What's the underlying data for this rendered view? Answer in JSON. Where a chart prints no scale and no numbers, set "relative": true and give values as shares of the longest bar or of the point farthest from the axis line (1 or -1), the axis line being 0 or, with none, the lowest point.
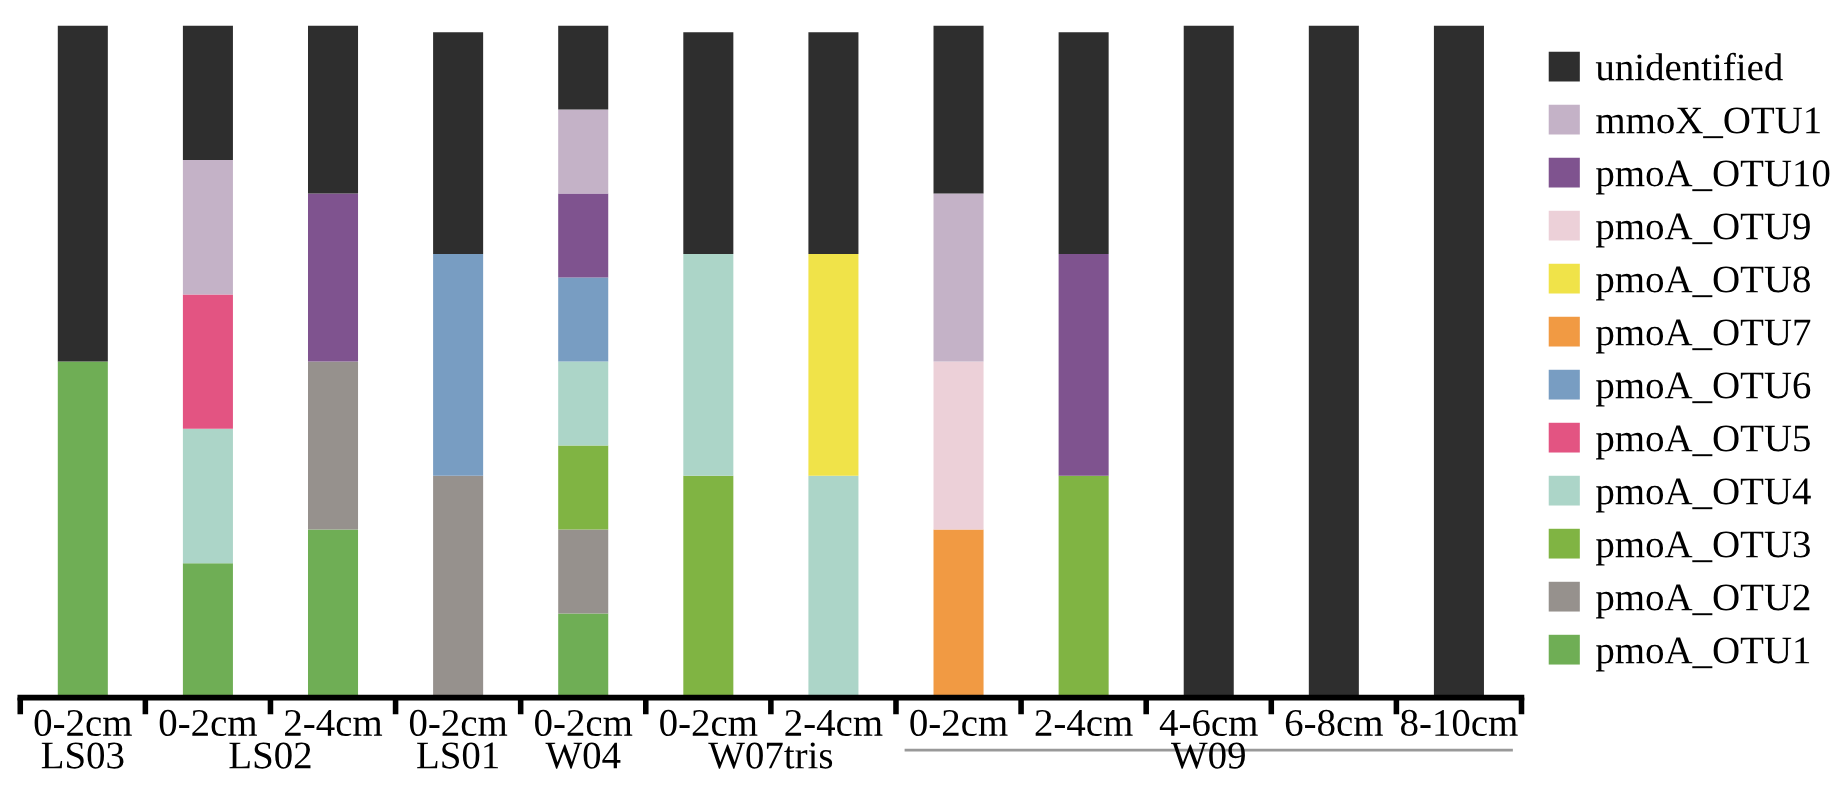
{
  "chart_data": {
    "type": "bar",
    "stacked": true,
    "relative": true,
    "legend": "right",
    "grid": false,
    "categories": [
      "0-2cm",
      "0-2cm",
      "2-4cm",
      "0-2cm",
      "0-2cm",
      "0-2cm",
      "2-4cm",
      "0-2cm",
      "2-4cm",
      "4-6cm",
      "6-8cm",
      "8-10cm"
    ],
    "annotations": [
      "LS03",
      "LS02",
      "LS01",
      "W04",
      "W07tris",
      "W09"
    ],
    "series": [
      {
        "name": "pmoA_OTU1",
        "color": "#6fae55",
        "values": [
          0.5,
          0.2,
          0.25,
          0,
          0.125,
          0,
          0,
          0,
          0,
          0,
          0,
          0
        ]
      },
      {
        "name": "pmoA_OTU2",
        "color": "#96918d",
        "values": [
          0,
          0,
          0.25,
          0.33,
          0.125,
          0,
          0,
          0,
          0,
          0,
          0,
          0
        ]
      },
      {
        "name": "pmoA_OTU3",
        "color": "#80b443",
        "values": [
          0,
          0,
          0,
          0,
          0.125,
          0.33,
          0,
          0,
          0.33,
          0,
          0,
          0
        ]
      },
      {
        "name": "pmoA_OTU4",
        "color": "#acd5c8",
        "values": [
          0,
          0.2,
          0,
          0,
          0.125,
          0.33,
          0.33,
          0,
          0,
          0,
          0,
          0
        ]
      },
      {
        "name": "pmoA_OTU5",
        "color": "#e35482",
        "values": [
          0,
          0.2,
          0,
          0,
          0,
          0,
          0,
          0,
          0,
          0,
          0,
          0
        ]
      },
      {
        "name": "pmoA_OTU6",
        "color": "#789dc2",
        "values": [
          0,
          0,
          0,
          0.33,
          0.125,
          0,
          0,
          0,
          0,
          0,
          0,
          0
        ]
      },
      {
        "name": "pmoA_OTU7",
        "color": "#f19a43",
        "values": [
          0,
          0,
          0,
          0,
          0,
          0,
          0,
          0.25,
          0,
          0,
          0,
          0
        ]
      },
      {
        "name": "pmoA_OTU8",
        "color": "#f0e349",
        "values": [
          0,
          0,
          0,
          0,
          0,
          0,
          0.33,
          0,
          0,
          0,
          0,
          0
        ]
      },
      {
        "name": "pmoA_OTU9",
        "color": "#ecd0d8",
        "values": [
          0,
          0,
          0,
          0,
          0,
          0,
          0,
          0.25,
          0,
          0,
          0,
          0
        ]
      },
      {
        "name": "pmoA_OTU10",
        "color": "#7f538f",
        "values": [
          0,
          0,
          0.25,
          0,
          0.125,
          0,
          0,
          0,
          0.33,
          0,
          0,
          0
        ]
      },
      {
        "name": "mmoX_OTU1",
        "color": "#c4b2c7",
        "values": [
          0,
          0.2,
          0,
          0,
          0.125,
          0,
          0,
          0.25,
          0,
          0,
          0,
          0
        ]
      },
      {
        "name": "unidentified",
        "color": "#2e2e2e",
        "values": [
          0.5,
          0.2,
          0.25,
          0.33,
          0.125,
          0.33,
          0.33,
          0.25,
          0.33,
          1,
          1,
          1
        ]
      }
    ]
  }
}
